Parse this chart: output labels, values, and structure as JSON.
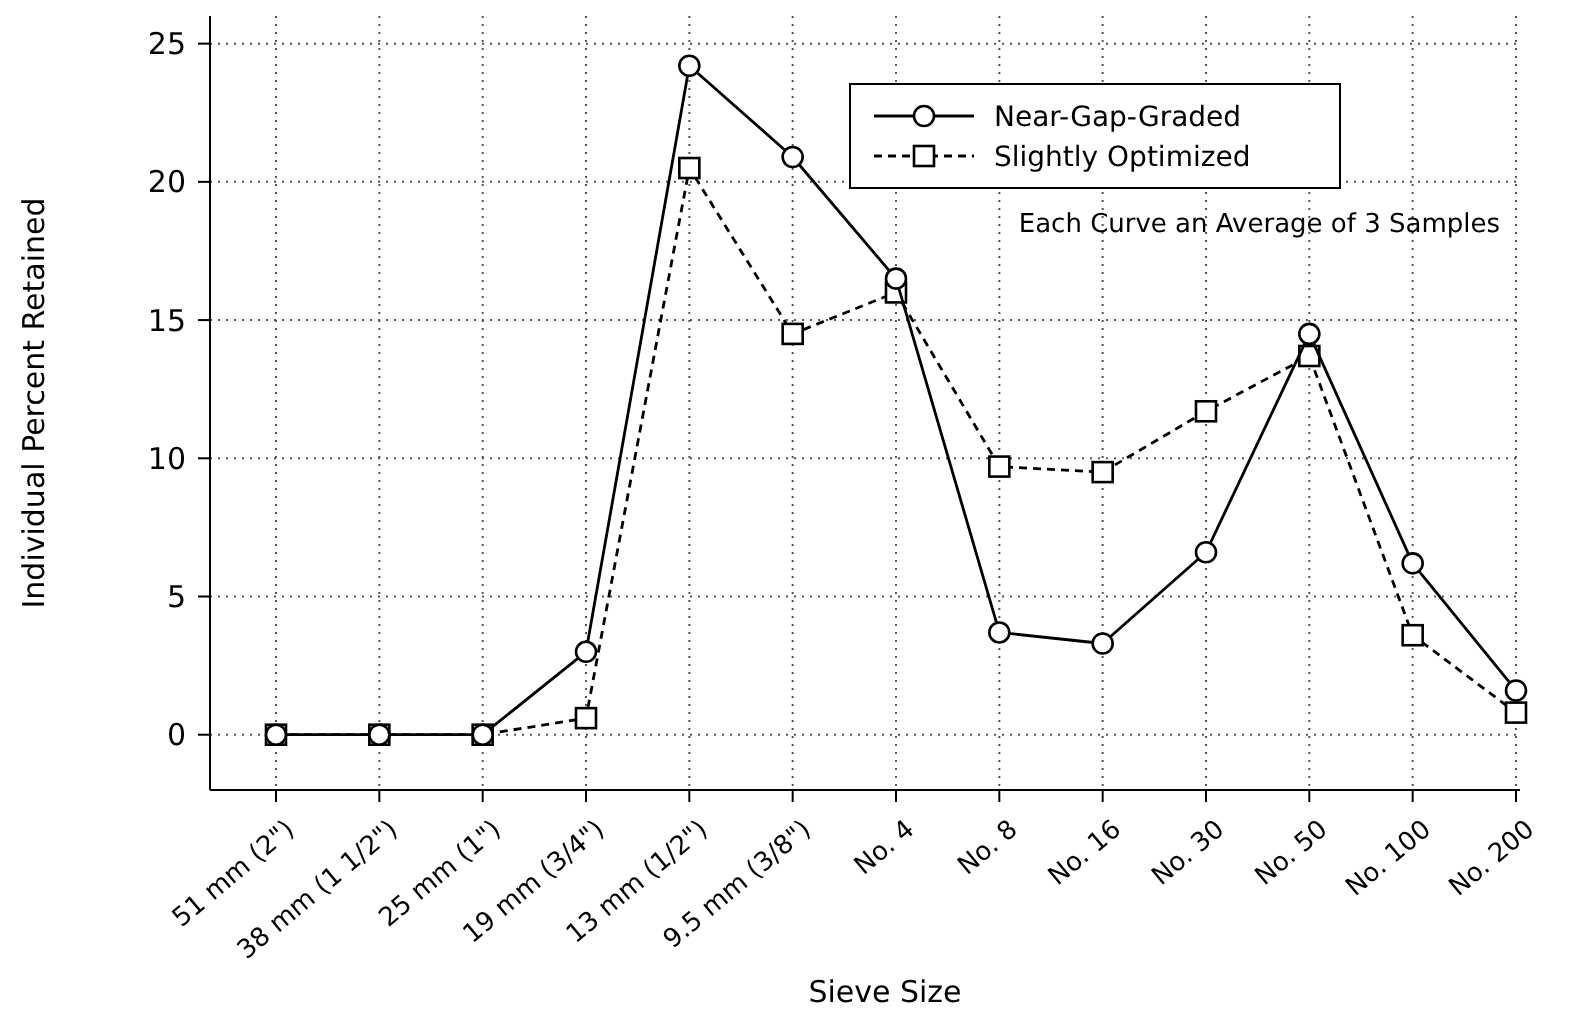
{
  "chart_data": {
    "type": "line",
    "xlabel": "Sieve Size",
    "ylabel": "Individual Percent Retained",
    "categories": [
      "51 mm (2\")",
      "38 mm (1 1/2\")",
      "25 mm (1\")",
      "19 mm (3/4\")",
      "13 mm (1/2\")",
      "9.5 mm (3/8\")",
      "No. 4",
      "No. 8",
      "No. 16",
      "No. 30",
      "No. 50",
      "No. 100",
      "No. 200"
    ],
    "series": [
      {
        "name": "Near-Gap-Graded",
        "color": "#000000",
        "marker": "circle",
        "line_style": "solid",
        "values": [
          0,
          0,
          0,
          3.0,
          24.2,
          20.9,
          16.5,
          3.7,
          3.3,
          6.6,
          14.5,
          6.2,
          1.6
        ]
      },
      {
        "name": "Slightly Optimized",
        "color": "#000000",
        "marker": "square",
        "line_style": "dashed",
        "values": [
          0,
          0,
          0,
          0.6,
          20.5,
          14.5,
          16.0,
          9.7,
          9.5,
          11.7,
          13.7,
          3.6,
          0.8
        ]
      }
    ],
    "ylim": [
      -2,
      26
    ],
    "yticks": [
      0,
      5,
      10,
      15,
      20,
      25
    ],
    "grid": true,
    "legend": "top right",
    "annotations": [
      "Each Curve an Average of 3 Samples"
    ]
  }
}
